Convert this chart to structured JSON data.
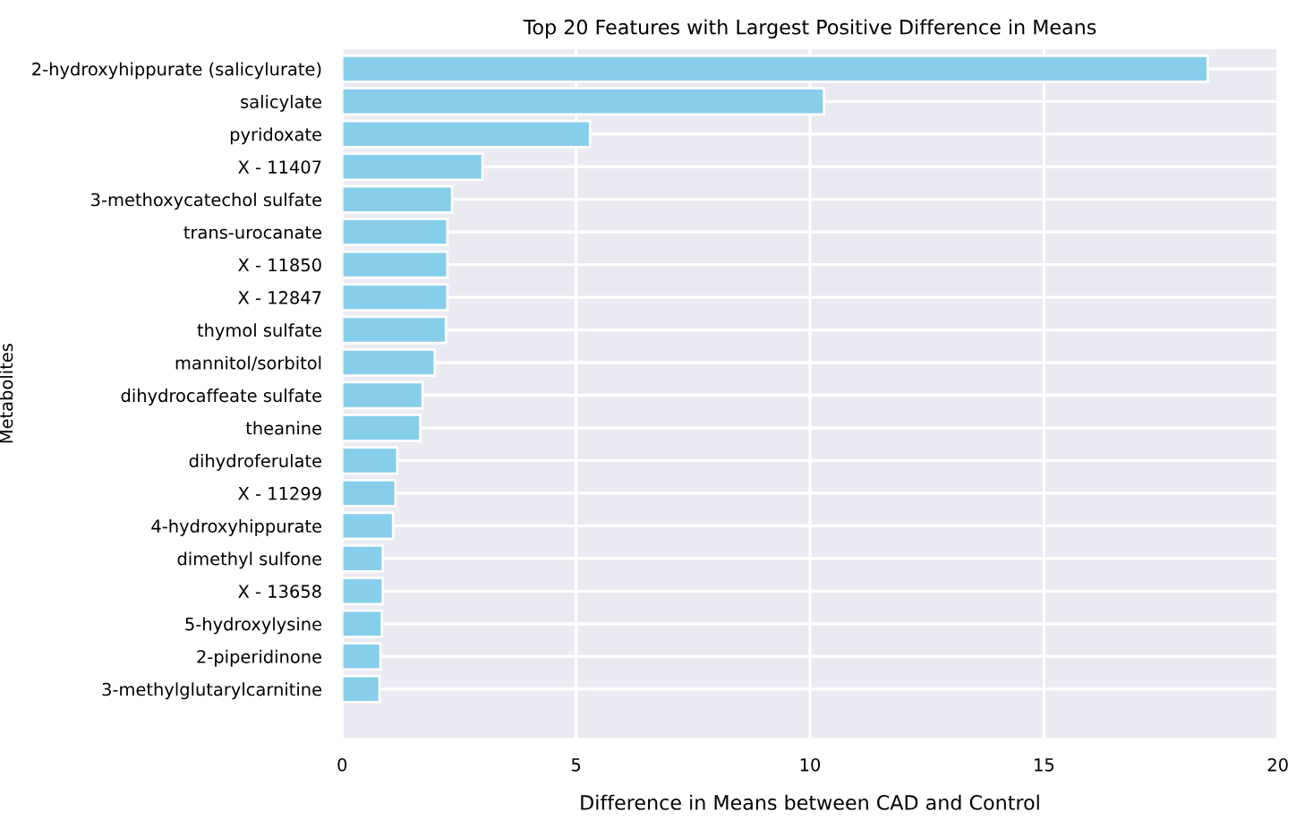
{
  "chart_data": {
    "type": "bar",
    "orientation": "horizontal",
    "title": "Top 20 Features with Largest Positive Difference in Means",
    "xlabel": "Difference in Means between CAD and Control",
    "ylabel": "Metabolites",
    "categories": [
      "2-hydroxyhippurate (salicylurate)",
      "salicylate",
      "pyridoxate",
      "X - 11407",
      "3-methoxycatechol sulfate",
      "trans-urocanate",
      "X - 11850",
      "X - 12847",
      "thymol sulfate",
      "mannitol/sorbitol",
      "dihydrocaffeate sulfate",
      "theanine",
      "dihydroferulate",
      "X - 11299",
      "4-hydroxyhippurate",
      "dimethyl sulfone",
      "X - 13658",
      "5-hydroxylysine",
      "2-piperidinone",
      "3-methylglutarylcarnitine"
    ],
    "values": [
      18.5,
      10.3,
      5.3,
      3.0,
      2.35,
      2.25,
      2.25,
      2.25,
      2.22,
      1.98,
      1.72,
      1.67,
      1.18,
      1.14,
      1.09,
      0.87,
      0.87,
      0.85,
      0.82,
      0.8
    ],
    "color": "#87ceeb",
    "xlim": [
      0,
      20
    ],
    "xticks": [
      0,
      5,
      10,
      15,
      20
    ],
    "grid": true
  }
}
